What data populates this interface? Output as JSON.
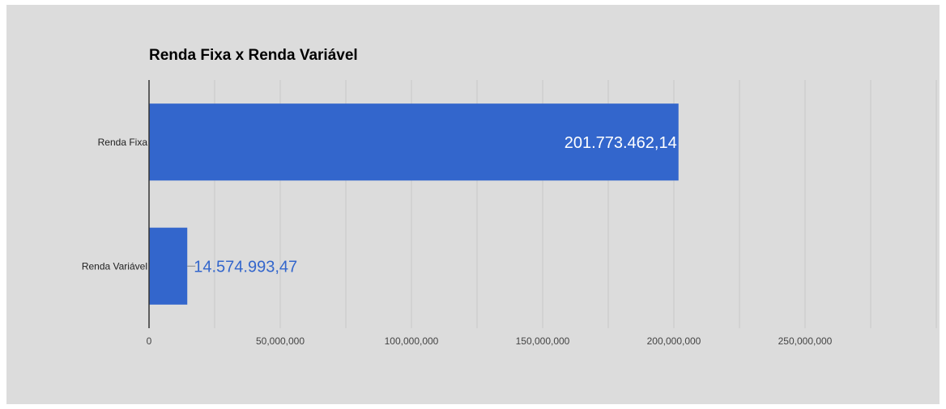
{
  "chart_data": {
    "type": "bar",
    "orientation": "horizontal",
    "title": "Renda Fixa x Renda Variável",
    "categories": [
      "Renda Fixa",
      "Renda Variável"
    ],
    "values": [
      201773462.14,
      14574993.47
    ],
    "data_labels": [
      "201.773.462,14",
      "14.574.993,47"
    ],
    "xlim": [
      0,
      300000000
    ],
    "x_ticks": [
      0,
      50000000,
      100000000,
      150000000,
      200000000,
      250000000
    ],
    "x_tick_labels": [
      "0",
      "50,000,000",
      "100,000,000",
      "150,000,000",
      "200,000,000",
      "250,000,000"
    ],
    "grid": true,
    "legend": "none",
    "colors": {
      "bar": "#3366cc",
      "background": "#dcdcdc",
      "grid": "#c8c8c8",
      "axis": "#333333",
      "label_inside": "#ffffff",
      "label_outside": "#3366cc"
    }
  }
}
